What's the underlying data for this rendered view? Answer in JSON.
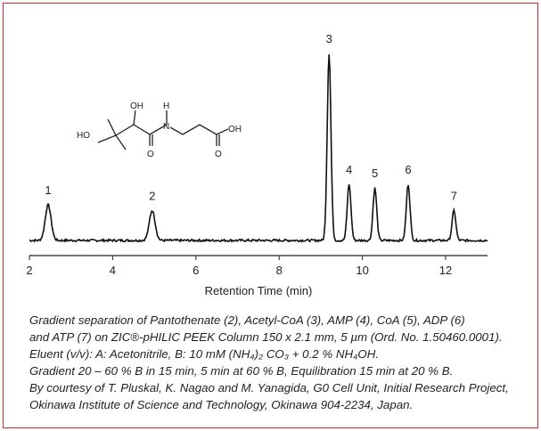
{
  "chart_data": {
    "type": "line",
    "xlabel": "Retention Time (min)",
    "ylabel": "",
    "xlim": [
      2,
      13
    ],
    "xticks": [
      2,
      4,
      6,
      8,
      10,
      12
    ],
    "grid": false,
    "peaks": [
      {
        "label": "1",
        "rt": 2.45,
        "height": 19
      },
      {
        "label": "2",
        "rt": 4.95,
        "height": 16
      },
      {
        "label": "3",
        "rt": 9.2,
        "height": 100
      },
      {
        "label": "4",
        "rt": 9.68,
        "height": 30
      },
      {
        "label": "5",
        "rt": 10.3,
        "height": 28
      },
      {
        "label": "6",
        "rt": 11.1,
        "height": 30
      },
      {
        "label": "7",
        "rt": 12.2,
        "height": 16
      }
    ],
    "line_color": "#111111"
  },
  "structure": {
    "labels": {
      "ho1": "HO",
      "oh2": "OH",
      "h": "H",
      "n": "N",
      "o1": "O",
      "oh3": "OH",
      "o2": "O"
    }
  },
  "caption": [
    "Gradient separation of Pantothenate (2), Acetyl-CoA (3), AMP (4), CoA (5), ADP (6)",
    "and ATP (7) on ZIC®-pHILIC PEEK Column 150 x 2.1 mm, 5 µm (Ord. No. 1.50460.0001).",
    "Eluent (v/v): A: Acetonitrile, B: 10 mM (NH₄)₂ CO₃ + 0.2 % NH₄OH.",
    "Gradient 20 – 60 % B in 15 min, 5 min at 60 % B, Equilibration 15 min at 20 % B.",
    "By courtesy of T. Pluskal, K. Nagao and M. Yanagida, G0 Cell Unit, Initial Research Project,",
    "Okinawa Institute of Science and Technology, Okinawa 904-2234, Japan."
  ],
  "frame_color": "#d9262c"
}
